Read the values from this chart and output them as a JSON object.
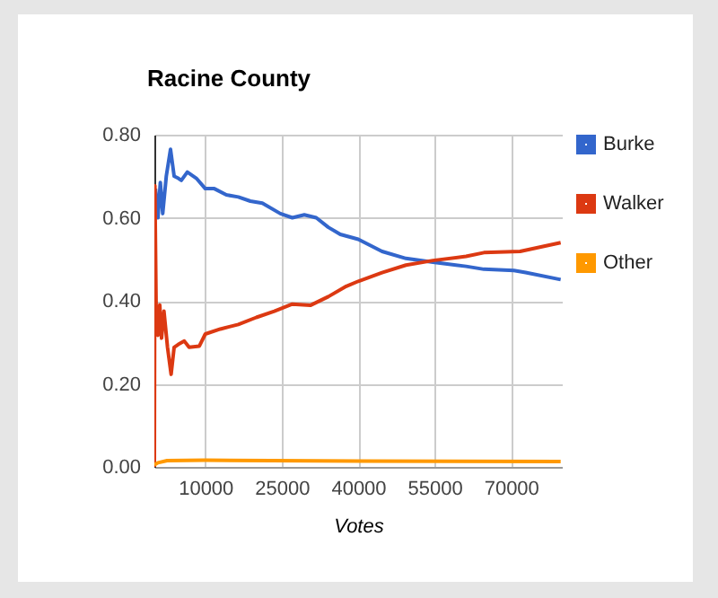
{
  "chart_data": {
    "type": "line",
    "title": "Racine County",
    "xlabel": "Votes",
    "xlim": [
      0,
      80000
    ],
    "xticks": [
      10000,
      25000,
      40000,
      55000,
      70000
    ],
    "ylim": [
      0,
      0.8
    ],
    "yticks": [
      {
        "value": 0,
        "label": "0.00"
      },
      {
        "value": 0.2,
        "label": "0.20"
      },
      {
        "value": 0.4,
        "label": "0.40"
      },
      {
        "value": 0.6,
        "label": "0.60"
      },
      {
        "value": 0.8,
        "label": "0.80"
      }
    ],
    "grid": true,
    "legend": "right",
    "line_style": "solid",
    "series": [
      {
        "name": "Burke",
        "color": "#3366cc",
        "x": [
          220,
          700,
          1170,
          1640,
          2340,
          3170,
          3880,
          4700,
          5290,
          6470,
          8240,
          10000,
          11770,
          14130,
          16480,
          18840,
          21200,
          24730,
          27080,
          29440,
          31790,
          34150,
          36500,
          40030,
          44700,
          49400,
          54700,
          61200,
          64700,
          70600,
          72900,
          79770
        ],
        "values": [
          0.67,
          0.6,
          0.685,
          0.61,
          0.7,
          0.765,
          0.7,
          0.695,
          0.69,
          0.71,
          0.695,
          0.67,
          0.67,
          0.655,
          0.65,
          0.64,
          0.635,
          0.61,
          0.6,
          0.607,
          0.6,
          0.577,
          0.56,
          0.548,
          0.519,
          0.502,
          0.493,
          0.483,
          0.476,
          0.473,
          0.468,
          0.451
        ]
      },
      {
        "name": "Walker",
        "color": "#dc3912",
        "x": [
          0,
          100,
          340,
          700,
          1060,
          1410,
          1880,
          2580,
          3290,
          3880,
          4700,
          5880,
          6820,
          8830,
          10000,
          12950,
          16480,
          20020,
          23550,
          27080,
          30610,
          34150,
          37680,
          40030,
          44700,
          49400,
          54700,
          61200,
          64700,
          71800,
          79770
        ],
        "values": [
          0,
          0.677,
          0.39,
          0.317,
          0.39,
          0.31,
          0.375,
          0.288,
          0.223,
          0.288,
          0.295,
          0.303,
          0.288,
          0.291,
          0.32,
          0.332,
          0.343,
          0.36,
          0.375,
          0.392,
          0.389,
          0.41,
          0.435,
          0.447,
          0.468,
          0.486,
          0.497,
          0.507,
          0.516,
          0.519,
          0.54
        ]
      },
      {
        "name": "Other",
        "color": "#ff9900",
        "x": [
          0,
          700,
          2500,
          10000,
          40000,
          79770
        ],
        "values": [
          0.005,
          0.01,
          0.015,
          0.016,
          0.014,
          0.013
        ]
      }
    ]
  }
}
